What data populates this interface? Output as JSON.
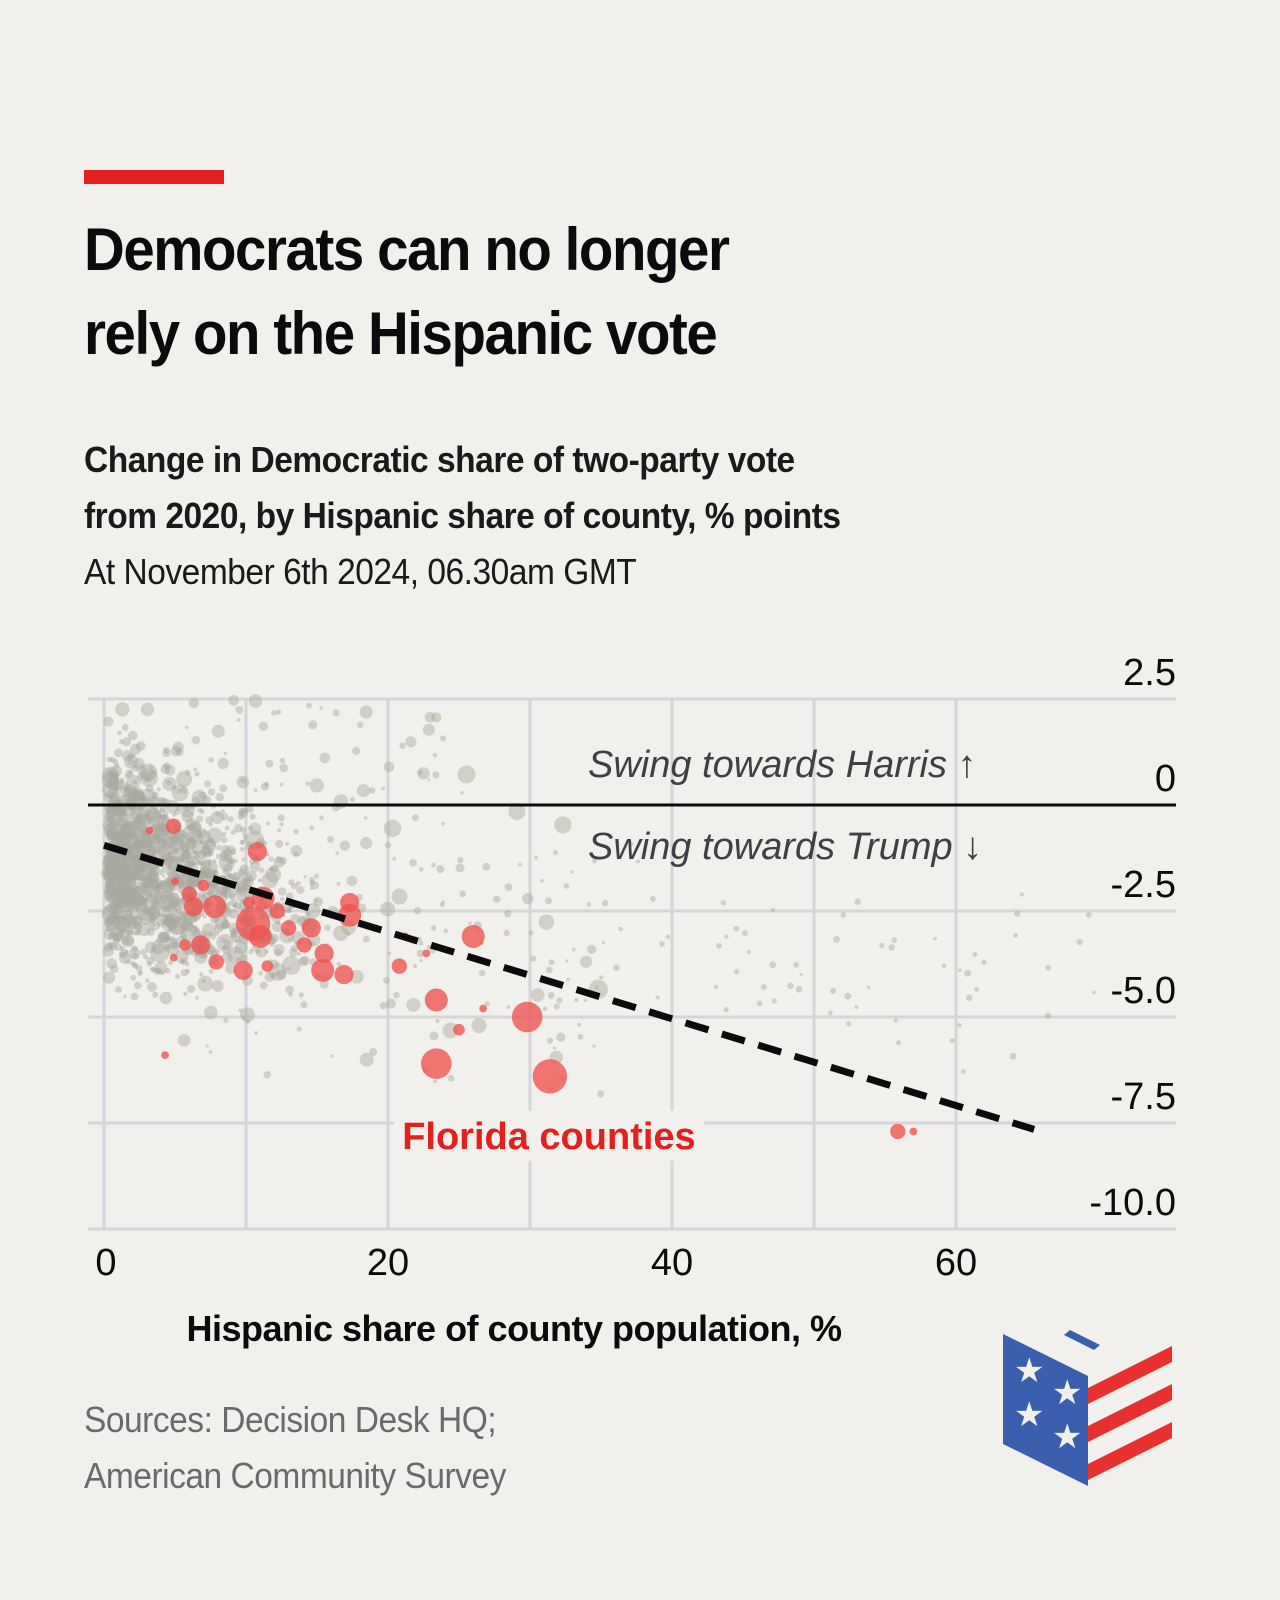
{
  "header": {
    "title_lines": [
      "Democrats can no longer",
      "rely on the Hispanic vote"
    ],
    "subtitle_lines": [
      "Change in Democratic share of two-party vote",
      "from 2020, by Hispanic share of county, % points"
    ],
    "date_line": "At November 6th 2024, 06.30am GMT"
  },
  "footer": {
    "sources_lines": [
      "Sources: Decision Desk HQ;",
      "American Community Survey"
    ]
  },
  "logo": {
    "icon": "ballot-box-flag-icon"
  },
  "colors": {
    "background": "#F1F0EC",
    "accent": "#E3201E",
    "florida": "#F0524E",
    "other_counties": "#A9A8A0",
    "grid": "#D6D6DA",
    "zero_line": "#0b0b0b",
    "trend": "#0b0b0b",
    "logo_blue": "#3A5FAF",
    "logo_red": "#E8302E"
  },
  "chart_data": {
    "type": "scatter",
    "title": "Change in Democratic share of two-party vote from 2020, by Hispanic share of county, % points",
    "xlabel": "Hispanic share of county population, %",
    "ylabel": "Change in Democratic share of two-party vote, % points",
    "xlim": [
      0,
      75
    ],
    "ylim": [
      -10,
      2.5
    ],
    "x_ticks": [
      0,
      20,
      40,
      60
    ],
    "x_tick_labels": [
      "0",
      "20",
      "40",
      "60"
    ],
    "x_grid": [
      0,
      10,
      20,
      30,
      40,
      50,
      60
    ],
    "y_ticks": [
      2.5,
      0,
      -2.5,
      -5,
      -7.5,
      -10
    ],
    "y_tick_labels": [
      "2.5",
      "0",
      "-2.5",
      "-5.0",
      "-7.5",
      "-10.0"
    ],
    "y_axis_side": "right",
    "grid": true,
    "annotations": [
      {
        "text": "Swing towards Harris",
        "arrow": "↑",
        "x": 34,
        "y": 0.9
      },
      {
        "text": "Swing towards Trump",
        "arrow": "↓",
        "x": 34,
        "y": -1.0
      },
      {
        "text": "Florida counties",
        "x": 21,
        "y": -7.4,
        "color": "florida"
      }
    ],
    "trend_line": {
      "style": "dashed",
      "x": [
        0,
        65.5
      ],
      "y": [
        -0.95,
        -7.65
      ]
    },
    "series": [
      {
        "name": "Florida counties",
        "color": "florida",
        "points": [
          {
            "x": 4.9,
            "y": -0.5,
            "size": 3
          },
          {
            "x": 3.2,
            "y": -0.6,
            "size": 1
          },
          {
            "x": 10.8,
            "y": -1.1,
            "size": 4
          },
          {
            "x": 5.0,
            "y": -1.8,
            "size": 1
          },
          {
            "x": 7.0,
            "y": -1.9,
            "size": 2
          },
          {
            "x": 6.0,
            "y": -2.1,
            "size": 3
          },
          {
            "x": 6.3,
            "y": -2.4,
            "size": 4
          },
          {
            "x": 7.8,
            "y": -2.4,
            "size": 5
          },
          {
            "x": 10.2,
            "y": -2.3,
            "size": 2
          },
          {
            "x": 11.2,
            "y": -2.2,
            "size": 5
          },
          {
            "x": 12.2,
            "y": -2.5,
            "size": 3
          },
          {
            "x": 10.5,
            "y": -2.8,
            "size": 8
          },
          {
            "x": 11.0,
            "y": -3.1,
            "size": 5
          },
          {
            "x": 13.0,
            "y": -2.9,
            "size": 3
          },
          {
            "x": 14.6,
            "y": -2.9,
            "size": 4
          },
          {
            "x": 17.3,
            "y": -2.3,
            "size": 4
          },
          {
            "x": 17.3,
            "y": -2.6,
            "size": 5
          },
          {
            "x": 5.7,
            "y": -3.3,
            "size": 2
          },
          {
            "x": 6.8,
            "y": -3.3,
            "size": 4
          },
          {
            "x": 14.1,
            "y": -3.3,
            "size": 3
          },
          {
            "x": 7.9,
            "y": -3.7,
            "size": 3
          },
          {
            "x": 11.5,
            "y": -3.8,
            "size": 2
          },
          {
            "x": 15.5,
            "y": -3.5,
            "size": 4
          },
          {
            "x": 9.8,
            "y": -3.9,
            "size": 4
          },
          {
            "x": 15.4,
            "y": -3.9,
            "size": 5
          },
          {
            "x": 16.9,
            "y": -4.0,
            "size": 4
          },
          {
            "x": 20.8,
            "y": -3.8,
            "size": 3
          },
          {
            "x": 21.2,
            "y": -3.1,
            "size": 1
          },
          {
            "x": 26.0,
            "y": -3.1,
            "size": 5
          },
          {
            "x": 22.7,
            "y": -3.5,
            "size": 1
          },
          {
            "x": 4.9,
            "y": -3.6,
            "size": 1
          },
          {
            "x": 23.4,
            "y": -4.6,
            "size": 5
          },
          {
            "x": 26.7,
            "y": -4.8,
            "size": 1
          },
          {
            "x": 29.8,
            "y": -5.0,
            "size": 7
          },
          {
            "x": 25.0,
            "y": -5.3,
            "size": 2
          },
          {
            "x": 23.4,
            "y": -6.1,
            "size": 7
          },
          {
            "x": 31.4,
            "y": -6.4,
            "size": 8
          },
          {
            "x": 4.3,
            "y": -5.9,
            "size": 1
          },
          {
            "x": 55.9,
            "y": -7.7,
            "size": 3
          },
          {
            "x": 57.0,
            "y": -7.7,
            "size": 1
          }
        ]
      },
      {
        "name": "Other counties",
        "color": "other_counties",
        "points": "approximately 3,000 counties; dense cluster at 0–15% Hispanic share with swings between +2.5 and -5.5 points, sparser scatter up to ~70% Hispanic share"
      }
    ]
  }
}
